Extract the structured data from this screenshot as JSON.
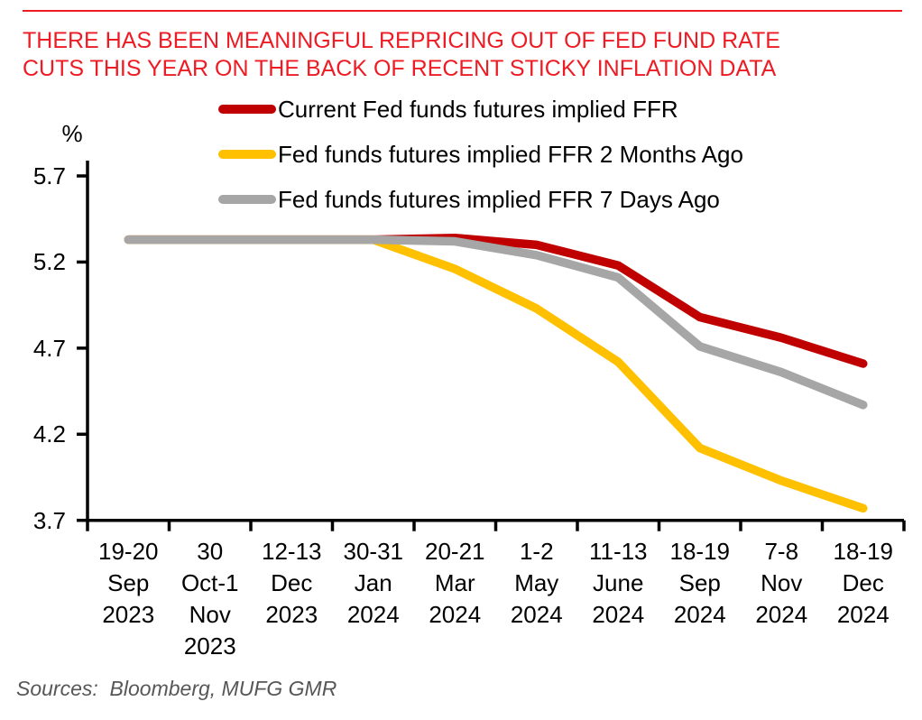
{
  "page": {
    "title_lines": [
      "THERE HAS BEEN MEANINGFUL REPRICING OUT OF FED FUND RATE",
      "CUTS THIS YEAR ON THE BACK OF RECENT STICKY INFLATION DATA"
    ],
    "title_color": "#ED1C24",
    "rule_color": "#ED1C24",
    "sources_text": "Sources:  Bloomberg, MUFG GMR"
  },
  "chart_data": {
    "type": "line",
    "title": "",
    "y_axis_label": "%",
    "xlabel": "",
    "ylabel": "%",
    "ylim": [
      3.7,
      5.7
    ],
    "yticks": [
      5.7,
      5.2,
      4.7,
      4.2,
      3.7
    ],
    "grid": false,
    "legend_position": "top-center",
    "categories": [
      "19-20 Sep 2023",
      "30 Oct-1 Nov 2023",
      "12-13 Dec 2023",
      "30-31 Jan 2024",
      "20-21 Mar 2024",
      "1-2 May 2024",
      "11-13 June 2024",
      "18-19 Sep 2024",
      "7-8 Nov 2024",
      "18-19 Dec 2024"
    ],
    "category_label_lines": [
      [
        "19-20",
        "Sep",
        "2023"
      ],
      [
        "30",
        "Oct-1",
        "Nov",
        "2023"
      ],
      [
        "12-13",
        "Dec",
        "2023"
      ],
      [
        "30-31",
        "Jan",
        "2024"
      ],
      [
        "20-21",
        "Mar",
        "2024"
      ],
      [
        "1-2",
        "May",
        "2024"
      ],
      [
        "11-13",
        "June",
        "2024"
      ],
      [
        "18-19",
        "Sep",
        "2024"
      ],
      [
        "7-8",
        "Nov",
        "2024"
      ],
      [
        "18-19",
        "Dec",
        "2024"
      ]
    ],
    "series": [
      {
        "name": "Current Fed funds futures implied FFR",
        "slug": "current",
        "color": "#C00000",
        "values": [
          5.33,
          5.33,
          5.33,
          5.33,
          5.34,
          5.3,
          5.18,
          4.88,
          4.76,
          4.61
        ]
      },
      {
        "name": "Fed funds futures implied FFR 2 Months Ago",
        "slug": "2-months-ago",
        "color": "#FFC000",
        "values": [
          5.33,
          5.33,
          5.33,
          5.33,
          5.16,
          4.93,
          4.62,
          4.12,
          3.93,
          3.77
        ]
      },
      {
        "name": "Fed funds futures implied FFR 7 Days Ago",
        "slug": "7-days-ago",
        "color": "#A6A6A6",
        "values": [
          5.33,
          5.33,
          5.33,
          5.33,
          5.32,
          5.24,
          5.11,
          4.71,
          4.56,
          4.37
        ]
      }
    ],
    "axis_color": "#000000"
  }
}
